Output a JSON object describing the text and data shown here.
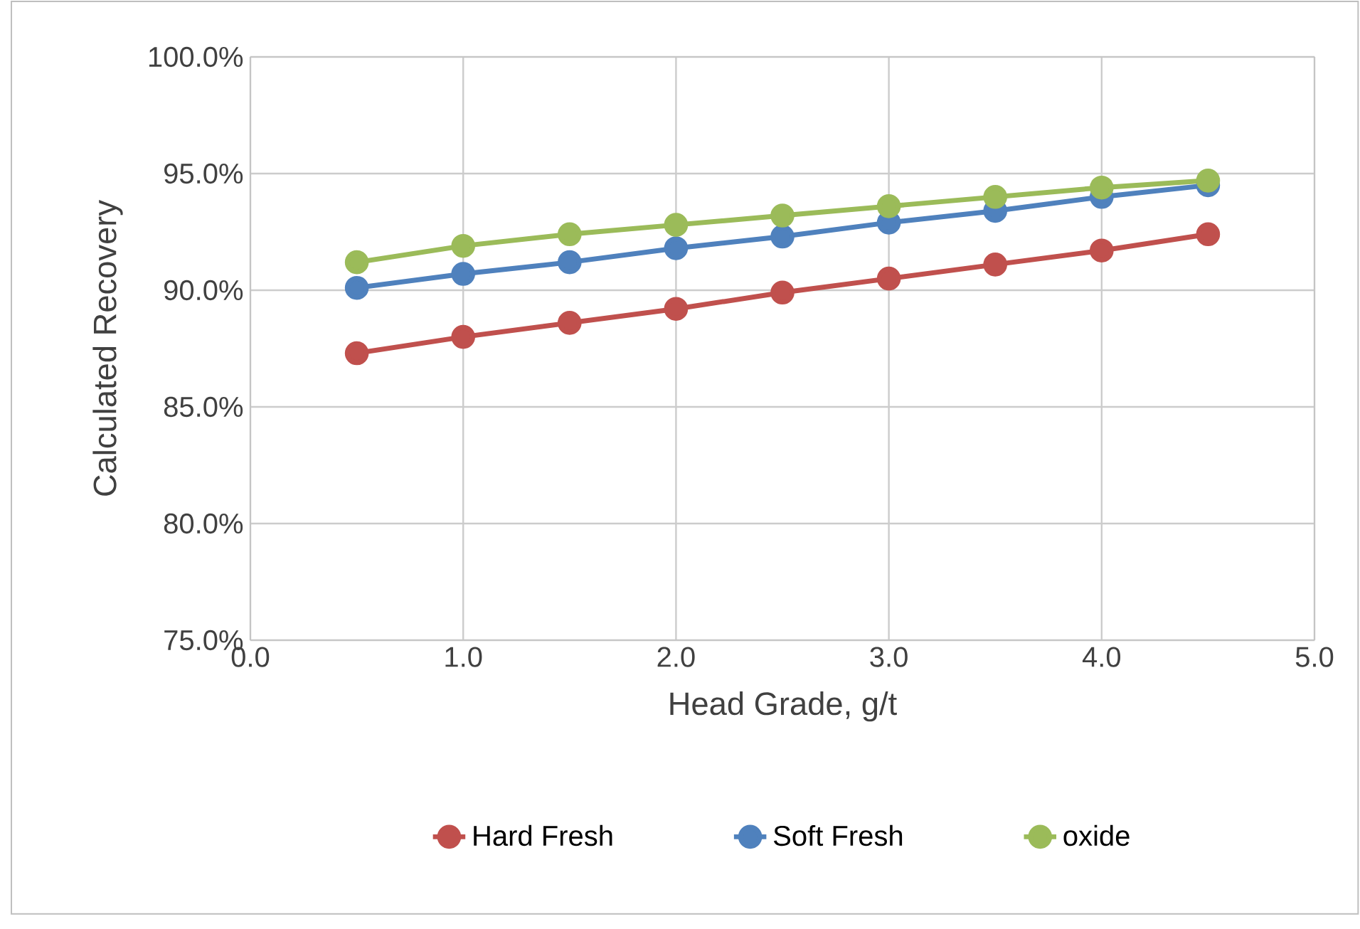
{
  "chart_data": {
    "type": "line",
    "xlabel": "Head Grade, g/t",
    "ylabel": "Calculated Recovery",
    "x": [
      0.5,
      1.0,
      1.5,
      2.0,
      2.5,
      3.0,
      3.5,
      4.0,
      4.5
    ],
    "series": [
      {
        "name": "Hard Fresh",
        "color": "#c0504d",
        "values": [
          87.3,
          88.0,
          88.6,
          89.2,
          89.9,
          90.5,
          91.1,
          91.7,
          92.4
        ]
      },
      {
        "name": "Soft Fresh",
        "color": "#4f81bd",
        "values": [
          90.1,
          90.7,
          91.2,
          91.8,
          92.3,
          92.9,
          93.4,
          94.0,
          94.5
        ]
      },
      {
        "name": "oxide",
        "color": "#9bbb59",
        "values": [
          91.2,
          91.9,
          92.4,
          92.8,
          93.2,
          93.6,
          94.0,
          94.4,
          94.7
        ]
      }
    ],
    "xlim": [
      0,
      5
    ],
    "xticks": [
      {
        "value": 0,
        "label": "0.0"
      },
      {
        "value": 1,
        "label": "1.0"
      },
      {
        "value": 2,
        "label": "2.0"
      },
      {
        "value": 3,
        "label": "3.0"
      },
      {
        "value": 4,
        "label": "4.0"
      },
      {
        "value": 5,
        "label": "5.0"
      }
    ],
    "ylim": [
      75,
      100
    ],
    "yticks": [
      {
        "value": 75,
        "label": "75.0%"
      },
      {
        "value": 80,
        "label": "80.0%"
      },
      {
        "value": 85,
        "label": "85.0%"
      },
      {
        "value": 90,
        "label": "90.0%"
      },
      {
        "value": 95,
        "label": "95.0%"
      },
      {
        "value": 100,
        "label": "100.0%"
      }
    ],
    "grid": true,
    "legend": "bottom",
    "marker": "circle",
    "line_style": "solid"
  }
}
